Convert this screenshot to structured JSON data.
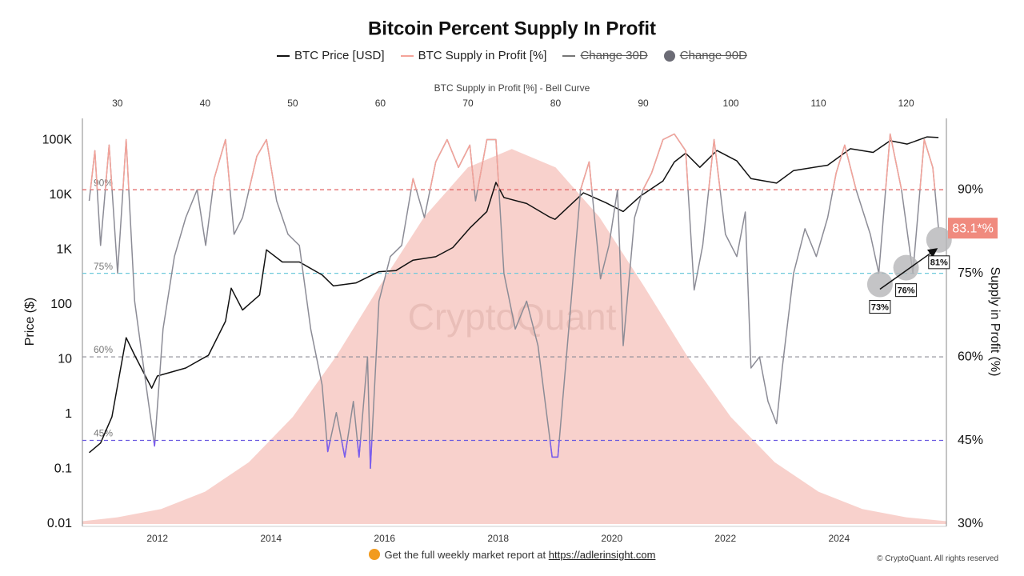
{
  "chart_data": {
    "type": "line",
    "title": "Bitcoin Percent Supply In Profit",
    "legend_hidden": [
      "Change 30D",
      "Change 90D"
    ],
    "xlim": [
      2010.68,
      2025.89
    ],
    "xticks": [
      2012,
      2014,
      2016,
      2018,
      2020,
      2022,
      2024
    ],
    "ylim": [
      0.01,
      250000
    ],
    "log_y": true,
    "yticks": [
      0.01,
      0.1,
      1,
      10,
      100,
      {
        "value": 1000,
        "label": "1K"
      },
      {
        "value": 10000,
        "label": "10K"
      },
      {
        "value": 100000,
        "label": "100K"
      }
    ],
    "y_label": "Price ($)",
    "y2lim": [
      30,
      102.8
    ],
    "y2ticks": [
      {
        "value": 30,
        "label": "30%"
      },
      {
        "value": 45,
        "label": "45%"
      },
      {
        "value": 60,
        "label": "60%"
      },
      {
        "value": 75,
        "label": "75%"
      },
      {
        "value": 90,
        "label": "90%"
      }
    ],
    "y2_label": "Supply in Profit (%)",
    "x2lim": [
      26,
      124.6
    ],
    "x2ticks": [
      30,
      40,
      50,
      60,
      70,
      80,
      90,
      100,
      110,
      120
    ],
    "x2_label": "BTC Supply in Profit [%] - Bell Curve",
    "series": [
      {
        "name": "BTC Price [USD]",
        "color": "#111111",
        "x": [
          2010.8,
          2011.0,
          2011.2,
          2011.45,
          2011.6,
          2011.9,
          2012.0,
          2012.5,
          2012.9,
          2013.2,
          2013.3,
          2013.5,
          2013.8,
          2013.92,
          2014.2,
          2014.5,
          2014.9,
          2015.1,
          2015.5,
          2015.9,
          2016.2,
          2016.5,
          2016.9,
          2017.2,
          2017.5,
          2017.8,
          2017.96,
          2018.1,
          2018.5,
          2018.9,
          2019.0,
          2019.5,
          2019.9,
          2020.2,
          2020.5,
          2020.9,
          2021.1,
          2021.3,
          2021.55,
          2021.85,
          2022.2,
          2022.45,
          2022.9,
          2023.2,
          2023.8,
          2024.2,
          2024.6,
          2024.9,
          2025.2,
          2025.55,
          2025.75
        ],
        "values": [
          0.2,
          0.3,
          0.9,
          25,
          12,
          3,
          5,
          7,
          12,
          50,
          200,
          80,
          150,
          1000,
          600,
          600,
          350,
          220,
          250,
          400,
          420,
          650,
          750,
          1100,
          2500,
          5000,
          17000,
          9000,
          7000,
          4000,
          3600,
          11000,
          7200,
          5000,
          9500,
          18000,
          40000,
          58000,
          32000,
          65000,
          42000,
          20000,
          16500,
          28000,
          35000,
          70000,
          60000,
          98000,
          85000,
          115000,
          112000
        ]
      },
      {
        "name": "BTC Supply in Profit [%]",
        "color": "#8c8c96",
        "axis": "y2",
        "highlight": [
          {
            "above": 90,
            "color": "#f4a39a"
          },
          {
            "below": 45,
            "color": "#7b5cf0"
          }
        ],
        "x": [
          2010.8,
          2010.9,
          2011.0,
          2011.15,
          2011.3,
          2011.45,
          2011.6,
          2011.8,
          2011.95,
          2012.1,
          2012.3,
          2012.5,
          2012.7,
          2012.85,
          2013.0,
          2013.2,
          2013.35,
          2013.5,
          2013.75,
          2013.92,
          2014.1,
          2014.3,
          2014.5,
          2014.7,
          2014.9,
          2015.0,
          2015.15,
          2015.3,
          2015.45,
          2015.55,
          2015.7,
          2015.75,
          2015.9,
          2016.1,
          2016.3,
          2016.5,
          2016.7,
          2016.9,
          2017.1,
          2017.3,
          2017.5,
          2017.6,
          2017.8,
          2017.96,
          2018.1,
          2018.3,
          2018.5,
          2018.7,
          2018.85,
          2018.95,
          2019.05,
          2019.2,
          2019.45,
          2019.6,
          2019.8,
          2019.95,
          2020.1,
          2020.2,
          2020.4,
          2020.55,
          2020.7,
          2020.9,
          2021.1,
          2021.3,
          2021.45,
          2021.6,
          2021.8,
          2022.0,
          2022.2,
          2022.35,
          2022.45,
          2022.6,
          2022.75,
          2022.9,
          2023.0,
          2023.2,
          2023.4,
          2023.6,
          2023.8,
          2023.95,
          2024.1,
          2024.3,
          2024.55,
          2024.7,
          2024.9,
          2025.1,
          2025.3,
          2025.5,
          2025.65,
          2025.75
        ],
        "values": [
          88,
          97,
          80,
          98,
          75,
          99,
          70,
          55,
          44,
          65,
          78,
          85,
          90,
          80,
          92,
          99,
          82,
          85,
          96,
          99,
          88,
          82,
          80,
          65,
          55,
          43,
          50,
          42,
          52,
          42,
          60,
          40,
          70,
          78,
          80,
          92,
          85,
          95,
          99,
          94,
          98,
          88,
          99,
          99,
          75,
          65,
          70,
          62,
          50,
          42,
          42,
          60,
          90,
          95,
          74,
          80,
          90,
          62,
          85,
          90,
          93,
          99,
          100,
          97,
          72,
          80,
          99,
          82,
          78,
          86,
          58,
          60,
          52,
          48,
          58,
          75,
          83,
          78,
          85,
          93,
          98,
          90,
          82,
          75,
          100,
          90,
          75,
          99,
          94,
          83.1
        ]
      }
    ],
    "bell": {
      "color": "#f7c9c3",
      "x": [
        26,
        30,
        35,
        40,
        45,
        50,
        55,
        60,
        65,
        70,
        75,
        80,
        85,
        90,
        95,
        100,
        105,
        110,
        115,
        120,
        124.6
      ],
      "values": [
        30.5,
        31.2,
        32.7,
        35.8,
        41.1,
        49.2,
        60.2,
        72.9,
        85.1,
        94.0,
        97.3,
        94.0,
        85.1,
        72.9,
        60.2,
        49.2,
        41.1,
        35.8,
        32.7,
        31.2,
        30.5
      ]
    },
    "reference_lines": [
      {
        "value": 90,
        "label": "90%",
        "color": "#e06060"
      },
      {
        "value": 75,
        "label": "75%",
        "color": "#6fc9db"
      },
      {
        "value": 60,
        "label": "60%",
        "color": "#8c8c96"
      },
      {
        "value": 45,
        "label": "45%",
        "color": "#6a5ae0"
      }
    ],
    "annotations": [
      {
        "x": 2024.72,
        "value": 73,
        "label": "73%"
      },
      {
        "x": 2025.18,
        "value": 76,
        "label": "76%"
      },
      {
        "x": 2025.76,
        "value": 81,
        "label": "81%"
      }
    ],
    "latest": {
      "value": 83.1,
      "label": "83.1*%",
      "color": "#f08a7e"
    },
    "watermark": "CryptoQuant"
  },
  "footer": {
    "text": "Get the full weekly market report at",
    "link": "https://adlerinsight.com",
    "copyright": "© CryptoQuant. All rights reserved"
  }
}
